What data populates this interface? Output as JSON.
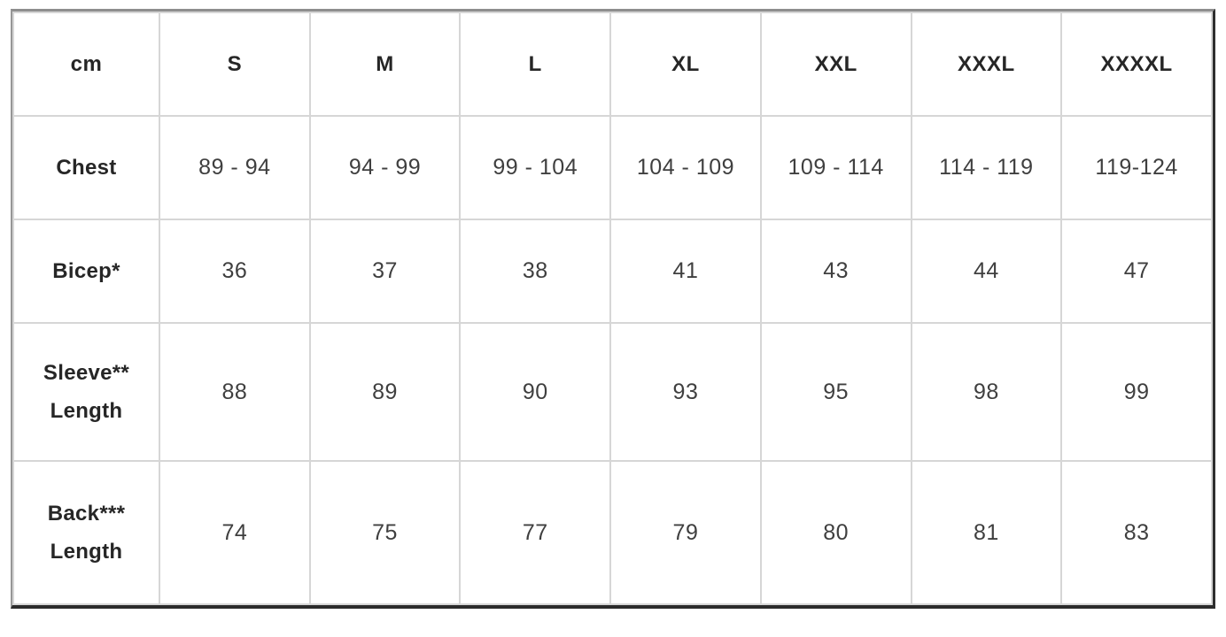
{
  "display": {
    "row_labels": [
      "Chest",
      "Bicep*",
      "Sleeve**\nLength",
      "Back***\nLength"
    ]
  },
  "colors": {
    "outer_border_top_left": "#8e8e8e",
    "outer_border_bottom_right": "#2b2b2b",
    "inner_border": "#d6d6d6",
    "label_text": "#262626",
    "value_text": "#3f3f3f",
    "background": "#ffffff"
  },
  "chart_data": {
    "type": "table",
    "unit_header": "cm",
    "columns": [
      "cm",
      "S",
      "M",
      "L",
      "XL",
      "XXL",
      "XXXL",
      "XXXXL"
    ],
    "rows": [
      {
        "label": "Chest",
        "values": [
          "89 - 94",
          "94 - 99",
          "99 - 104",
          "104 - 109",
          "109 - 114",
          "114 - 119",
          "119-124"
        ]
      },
      {
        "label": "Bicep*",
        "values": [
          "36",
          "37",
          "38",
          "41",
          "43",
          "44",
          "47"
        ]
      },
      {
        "label": "Sleeve** Length",
        "values": [
          "88",
          "89",
          "90",
          "93",
          "95",
          "98",
          "99"
        ]
      },
      {
        "label": "Back*** Length",
        "values": [
          "74",
          "75",
          "77",
          "79",
          "80",
          "81",
          "83"
        ]
      }
    ]
  }
}
